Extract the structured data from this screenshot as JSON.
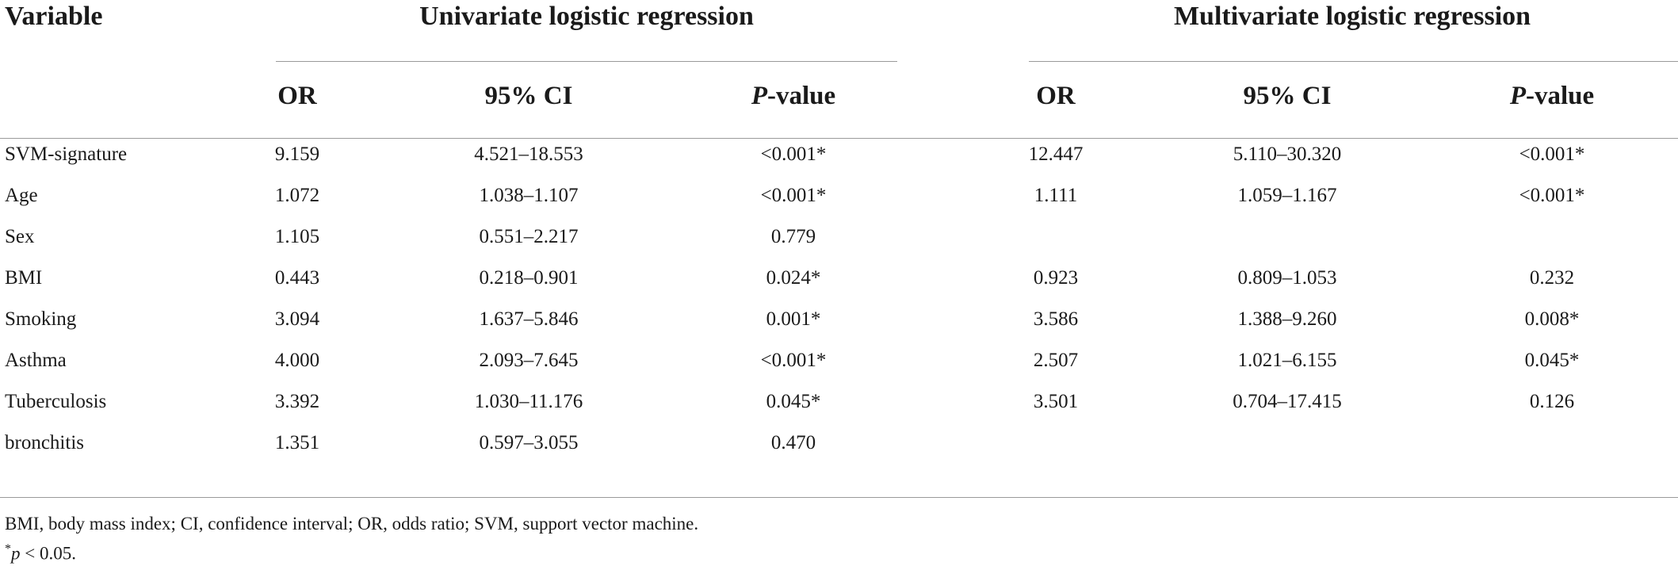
{
  "table": {
    "variable_header": "Variable",
    "group_univariate": "Univariate logistic regression",
    "group_multivariate": "Multivariate logistic regression",
    "col_or": "OR",
    "col_ci": "95% CI",
    "col_p_letter": "P",
    "col_p_rest": "-value",
    "rows": [
      {
        "variable": "SVM-signature",
        "uni_or": "9.159",
        "uni_ci": "4.521–18.553",
        "uni_p": "<0.001*",
        "multi_or": "12.447",
        "multi_ci": "5.110–30.320",
        "multi_p": "<0.001*"
      },
      {
        "variable": "Age",
        "uni_or": "1.072",
        "uni_ci": "1.038–1.107",
        "uni_p": "<0.001*",
        "multi_or": "1.111",
        "multi_ci": "1.059–1.167",
        "multi_p": "<0.001*"
      },
      {
        "variable": "Sex",
        "uni_or": "1.105",
        "uni_ci": "0.551–2.217",
        "uni_p": "0.779",
        "multi_or": "",
        "multi_ci": "",
        "multi_p": ""
      },
      {
        "variable": "BMI",
        "uni_or": "0.443",
        "uni_ci": "0.218–0.901",
        "uni_p": "0.024*",
        "multi_or": "0.923",
        "multi_ci": "0.809–1.053",
        "multi_p": "0.232"
      },
      {
        "variable": "Smoking",
        "uni_or": "3.094",
        "uni_ci": "1.637–5.846",
        "uni_p": "0.001*",
        "multi_or": "3.586",
        "multi_ci": "1.388–9.260",
        "multi_p": "0.008*"
      },
      {
        "variable": "Asthma",
        "uni_or": "4.000",
        "uni_ci": "2.093–7.645",
        "uni_p": "<0.001*",
        "multi_or": "2.507",
        "multi_ci": "1.021–6.155",
        "multi_p": "0.045*"
      },
      {
        "variable": "Tuberculosis",
        "uni_or": "3.392",
        "uni_ci": "1.030–11.176",
        "uni_p": "0.045*",
        "multi_or": "3.501",
        "multi_ci": "0.704–17.415",
        "multi_p": "0.126"
      },
      {
        "variable": "bronchitis",
        "uni_or": "1.351",
        "uni_ci": "0.597–3.055",
        "uni_p": "0.470",
        "multi_or": "",
        "multi_ci": "",
        "multi_p": ""
      }
    ]
  },
  "footnotes": {
    "abbreviations": "BMI, body mass index; CI, confidence interval; OR, odds ratio; SVM, support vector machine.",
    "significance_star": "*",
    "significance_p": "p",
    "significance_rest": " < 0.05."
  }
}
